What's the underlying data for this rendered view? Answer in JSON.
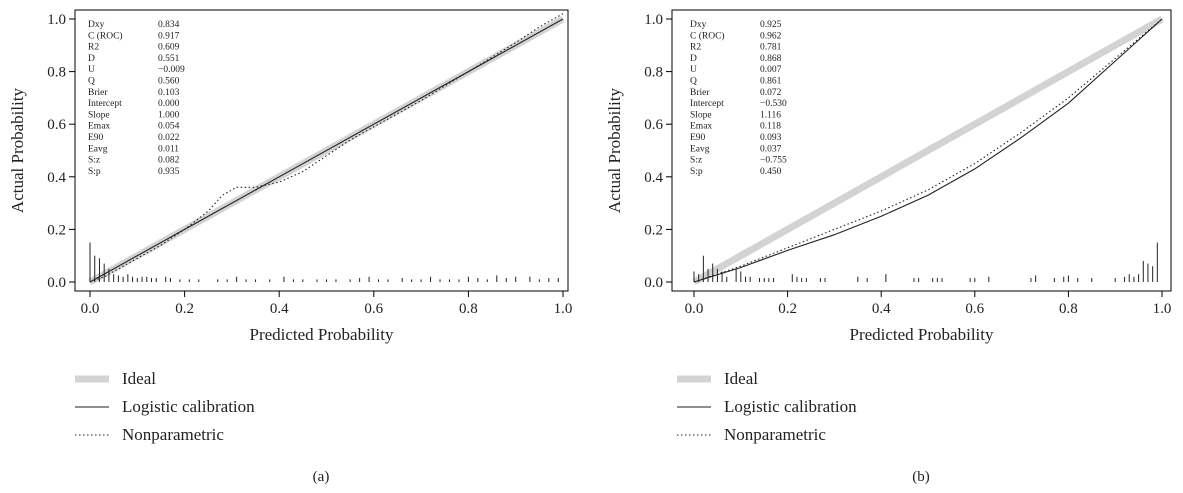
{
  "chart_data": [
    {
      "type": "line",
      "panel_label": "(a)",
      "xlabel": "Predicted Probability",
      "ylabel": "Actual Probability",
      "xlim": [
        0,
        1
      ],
      "ylim": [
        0,
        1
      ],
      "x_ticks": [
        "0.0",
        "0.2",
        "0.4",
        "0.6",
        "0.8",
        "1.0"
      ],
      "y_ticks": [
        "0.0",
        "0.2",
        "0.4",
        "0.6",
        "0.8",
        "1.0"
      ],
      "legend": [
        {
          "label": "Ideal",
          "style": "ideal"
        },
        {
          "label": "Logistic calibration",
          "style": "solid"
        },
        {
          "label": "Nonparametric",
          "style": "dotted"
        }
      ],
      "stats": [
        {
          "name": "Dxy",
          "value": "0.834"
        },
        {
          "name": "C (ROC)",
          "value": "0.917"
        },
        {
          "name": "R2",
          "value": "0.609"
        },
        {
          "name": "D",
          "value": "0.551"
        },
        {
          "name": "U",
          "value": "−0.009"
        },
        {
          "name": "Q",
          "value": "0.560"
        },
        {
          "name": "Brier",
          "value": "0.103"
        },
        {
          "name": "Intercept",
          "value": "0.000"
        },
        {
          "name": "Slope",
          "value": "1.000"
        },
        {
          "name": "Emax",
          "value": "0.054"
        },
        {
          "name": "E90",
          "value": "0.022"
        },
        {
          "name": "Eavg",
          "value": "0.011"
        },
        {
          "name": "S:z",
          "value": "0.082"
        },
        {
          "name": "S:p",
          "value": "0.935"
        }
      ],
      "series": [
        {
          "name": "Ideal",
          "x": [
            0,
            1
          ],
          "y": [
            0,
            1
          ]
        },
        {
          "name": "Logistic calibration",
          "x": [
            0,
            0.2,
            0.4,
            0.6,
            0.8,
            1.0
          ],
          "y": [
            0,
            0.2,
            0.4,
            0.6,
            0.8,
            1.0
          ]
        },
        {
          "name": "Nonparametric",
          "x": [
            0.0,
            0.03,
            0.06,
            0.1,
            0.15,
            0.2,
            0.25,
            0.28,
            0.31,
            0.35,
            0.4,
            0.45,
            0.5,
            0.55,
            0.6,
            0.7,
            0.8,
            0.9,
            0.95,
            1.0
          ],
          "y": [
            0.0,
            0.02,
            0.05,
            0.09,
            0.14,
            0.2,
            0.27,
            0.33,
            0.36,
            0.36,
            0.38,
            0.42,
            0.48,
            0.54,
            0.59,
            0.69,
            0.8,
            0.91,
            0.97,
            1.02
          ]
        }
      ],
      "rug": {
        "x": [
          0.0,
          0.01,
          0.02,
          0.03,
          0.04,
          0.05,
          0.06,
          0.07,
          0.08,
          0.09,
          0.1,
          0.11,
          0.12,
          0.13,
          0.14,
          0.16,
          0.17,
          0.19,
          0.21,
          0.23,
          0.27,
          0.29,
          0.31,
          0.33,
          0.35,
          0.38,
          0.41,
          0.43,
          0.45,
          0.48,
          0.5,
          0.52,
          0.55,
          0.57,
          0.59,
          0.61,
          0.63,
          0.66,
          0.68,
          0.7,
          0.72,
          0.74,
          0.76,
          0.78,
          0.8,
          0.82,
          0.84,
          0.86,
          0.88,
          0.9,
          0.93,
          0.95,
          0.97,
          0.99
        ],
        "height": [
          0.15,
          0.1,
          0.09,
          0.07,
          0.05,
          0.03,
          0.025,
          0.02,
          0.03,
          0.02,
          0.015,
          0.02,
          0.02,
          0.015,
          0.015,
          0.02,
          0.015,
          0.01,
          0.01,
          0.01,
          0.01,
          0.01,
          0.02,
          0.01,
          0.01,
          0.01,
          0.02,
          0.01,
          0.01,
          0.01,
          0.01,
          0.01,
          0.01,
          0.015,
          0.02,
          0.01,
          0.01,
          0.015,
          0.01,
          0.01,
          0.02,
          0.01,
          0.01,
          0.01,
          0.02,
          0.015,
          0.01,
          0.025,
          0.015,
          0.02,
          0.02,
          0.01,
          0.015,
          0.015
        ]
      }
    },
    {
      "type": "line",
      "panel_label": "(b)",
      "xlabel": "Predicted Probability",
      "ylabel": "Actual Probability",
      "xlim": [
        0,
        1
      ],
      "ylim": [
        0,
        1
      ],
      "x_ticks": [
        "0.0",
        "0.2",
        "0.4",
        "0.6",
        "0.8",
        "1.0"
      ],
      "y_ticks": [
        "0.0",
        "0.2",
        "0.4",
        "0.6",
        "0.8",
        "1.0"
      ],
      "legend": [
        {
          "label": "Ideal",
          "style": "ideal"
        },
        {
          "label": "Logistic calibration",
          "style": "solid"
        },
        {
          "label": "Nonparametric",
          "style": "dotted"
        }
      ],
      "stats": [
        {
          "name": "Dxy",
          "value": "0.925"
        },
        {
          "name": "C (ROC)",
          "value": "0.962"
        },
        {
          "name": "R2",
          "value": "0.781"
        },
        {
          "name": "D",
          "value": "0.868"
        },
        {
          "name": "U",
          "value": "0.007"
        },
        {
          "name": "Q",
          "value": "0.861"
        },
        {
          "name": "Brier",
          "value": "0.072"
        },
        {
          "name": "Intercept",
          "value": "−0.530"
        },
        {
          "name": "Slope",
          "value": "1.116"
        },
        {
          "name": "Emax",
          "value": "0.118"
        },
        {
          "name": "E90",
          "value": "0.093"
        },
        {
          "name": "Eavg",
          "value": "0.037"
        },
        {
          "name": "S:z",
          "value": "−0.755"
        },
        {
          "name": "S:p",
          "value": "0.450"
        }
      ],
      "series": [
        {
          "name": "Ideal",
          "x": [
            0,
            1
          ],
          "y": [
            0,
            1
          ]
        },
        {
          "name": "Logistic calibration",
          "x": [
            0.0,
            0.1,
            0.2,
            0.3,
            0.4,
            0.5,
            0.6,
            0.7,
            0.8,
            0.9,
            1.0
          ],
          "y": [
            0.0,
            0.055,
            0.12,
            0.18,
            0.25,
            0.33,
            0.43,
            0.55,
            0.68,
            0.84,
            1.0
          ]
        },
        {
          "name": "Nonparametric",
          "x": [
            0.0,
            0.1,
            0.2,
            0.3,
            0.4,
            0.5,
            0.6,
            0.7,
            0.8,
            0.9,
            1.0
          ],
          "y": [
            0.0,
            0.06,
            0.13,
            0.2,
            0.27,
            0.35,
            0.45,
            0.57,
            0.7,
            0.85,
            1.0
          ]
        }
      ],
      "rug": {
        "x": [
          0.0,
          0.01,
          0.02,
          0.03,
          0.04,
          0.05,
          0.06,
          0.07,
          0.09,
          0.1,
          0.11,
          0.12,
          0.14,
          0.15,
          0.16,
          0.17,
          0.21,
          0.22,
          0.23,
          0.24,
          0.27,
          0.28,
          0.35,
          0.37,
          0.41,
          0.47,
          0.48,
          0.51,
          0.52,
          0.53,
          0.59,
          0.6,
          0.63,
          0.72,
          0.73,
          0.77,
          0.79,
          0.8,
          0.82,
          0.85,
          0.9,
          0.92,
          0.93,
          0.94,
          0.95,
          0.96,
          0.97,
          0.98,
          0.99
        ],
        "height": [
          0.04,
          0.03,
          0.1,
          0.05,
          0.07,
          0.05,
          0.04,
          0.02,
          0.05,
          0.04,
          0.02,
          0.02,
          0.015,
          0.015,
          0.015,
          0.015,
          0.03,
          0.02,
          0.015,
          0.015,
          0.015,
          0.015,
          0.02,
          0.015,
          0.03,
          0.015,
          0.015,
          0.015,
          0.015,
          0.015,
          0.015,
          0.015,
          0.02,
          0.015,
          0.025,
          0.015,
          0.02,
          0.025,
          0.015,
          0.015,
          0.015,
          0.02,
          0.03,
          0.02,
          0.03,
          0.08,
          0.07,
          0.06,
          0.15
        ]
      }
    }
  ]
}
